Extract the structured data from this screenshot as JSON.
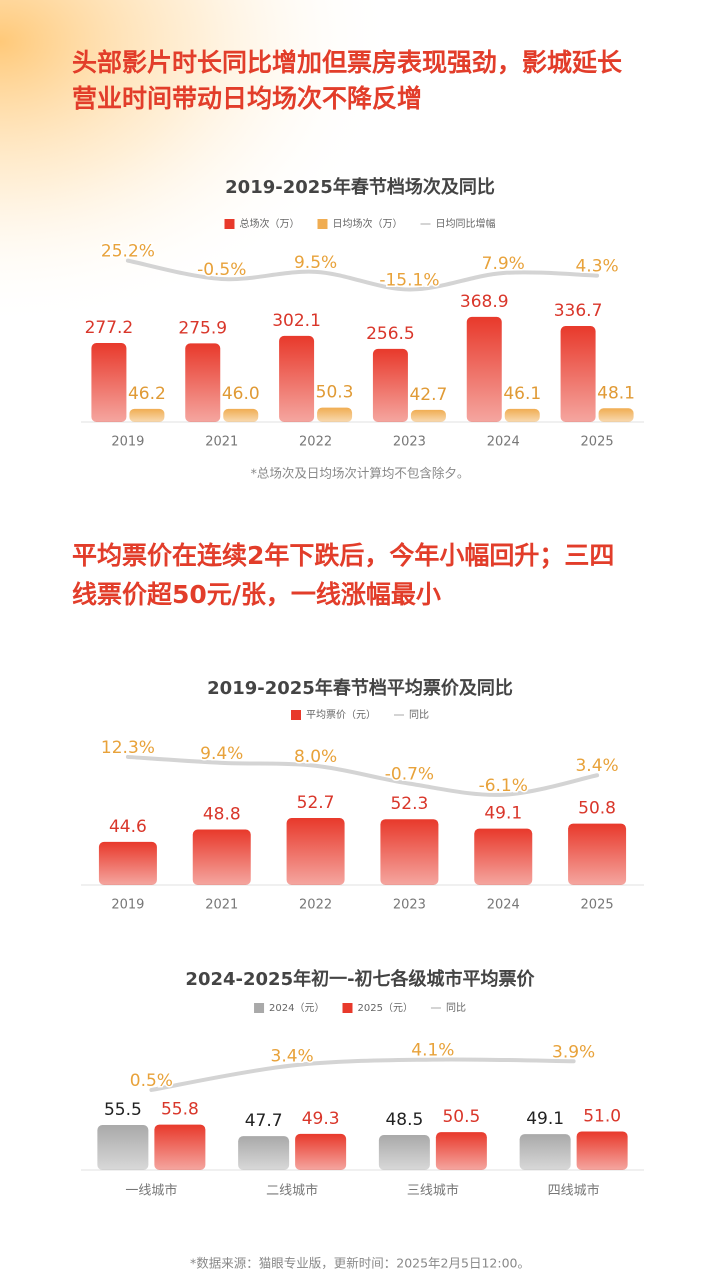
{
  "headlines": [
    [
      "头部影片时长同比增加但票房表现强劲，影城延长",
      "营业时间带动日均场次不降反增"
    ],
    [
      "平均票价在连续2年下跌后，今年小幅回升；三四",
      "线票价超50元/张，一线涨幅最小"
    ]
  ],
  "note": "*总场次及日均场次计算均不包含除夕。",
  "source": "*数据来源：猫眼专业版，更新时间：2025年2月5日12:00。",
  "chart_data": [
    {
      "type": "bar",
      "title": "2019-2025年春节档场次及同比",
      "categories": [
        "2019",
        "2021",
        "2022",
        "2023",
        "2024",
        "2025"
      ],
      "series": [
        {
          "name": "总场次（万）",
          "color": "#e8392b",
          "label_color": "#d9362a",
          "values": [
            277.2,
            275.9,
            302.1,
            256.5,
            368.9,
            336.7
          ]
        },
        {
          "name": "日均场次（万）",
          "color": "#f0ad52",
          "label_color": "#e09a35",
          "values": [
            46.2,
            46.0,
            50.3,
            42.7,
            46.1,
            48.1
          ],
          "value_labels": [
            "46.2",
            "46.0",
            "50.3",
            "42.7",
            "46.1",
            "48.1"
          ]
        },
        {
          "name": "日均同比增幅",
          "type": "line",
          "axis": "y2",
          "color": "#d4d4d4",
          "label_color": "#e8a23a",
          "values": [
            25.2,
            -0.5,
            9.5,
            -15.1,
            7.9,
            4.3
          ],
          "value_labels": [
            "25.2%",
            "-0.5%",
            "9.5%",
            "-15.1%",
            "7.9%",
            "4.3%"
          ]
        }
      ],
      "ylim": [
        0,
        400
      ],
      "y2lim": [
        -200,
        40
      ]
    },
    {
      "type": "bar",
      "title": "2019-2025年春节档平均票价及同比",
      "categories": [
        "2019",
        "2021",
        "2022",
        "2023",
        "2024",
        "2025"
      ],
      "series": [
        {
          "name": "平均票价（元）",
          "color": "#e8392b",
          "label_color": "#d9362a",
          "values": [
            44.6,
            48.8,
            52.7,
            52.3,
            49.1,
            50.8
          ]
        },
        {
          "name": "同比",
          "type": "line",
          "axis": "y2",
          "color": "#d4d4d4",
          "label_color": "#e8a23a",
          "values": [
            12.3,
            9.4,
            8.0,
            -0.7,
            -6.1,
            3.4
          ],
          "value_labels": [
            "12.3%",
            "9.4%",
            "8.0%",
            "-0.7%",
            "-6.1%",
            "3.4%"
          ]
        }
      ],
      "ylim": [
        30,
        70
      ],
      "y2lim": [
        -50,
        40
      ]
    },
    {
      "type": "bar",
      "title": "2024-2025年初一-初七各级城市平均票价",
      "categories": [
        "一线城市",
        "二线城市",
        "三线城市",
        "四线城市"
      ],
      "series": [
        {
          "name": "2024（元）",
          "color": "#a9a9a9",
          "label_color": "#222222",
          "values": [
            55.5,
            47.7,
            48.5,
            49.1
          ]
        },
        {
          "name": "2025（元）",
          "color": "#e8392b",
          "label_color": "#d9362a",
          "values": [
            55.8,
            49.3,
            50.5,
            51.0
          ],
          "value_labels": [
            "55.8",
            "49.3",
            "50.5",
            "51.0"
          ]
        },
        {
          "name": "同比",
          "type": "line",
          "axis": "y2",
          "color": "#d4d4d4",
          "label_color": "#e8a23a",
          "values": [
            0.5,
            3.4,
            4.1,
            3.9
          ],
          "value_labels": [
            "0.5%",
            "3.4%",
            "4.1%",
            "3.9%"
          ]
        }
      ],
      "ylim": [
        24,
        60
      ],
      "y2lim": [
        -9,
        5
      ]
    }
  ]
}
